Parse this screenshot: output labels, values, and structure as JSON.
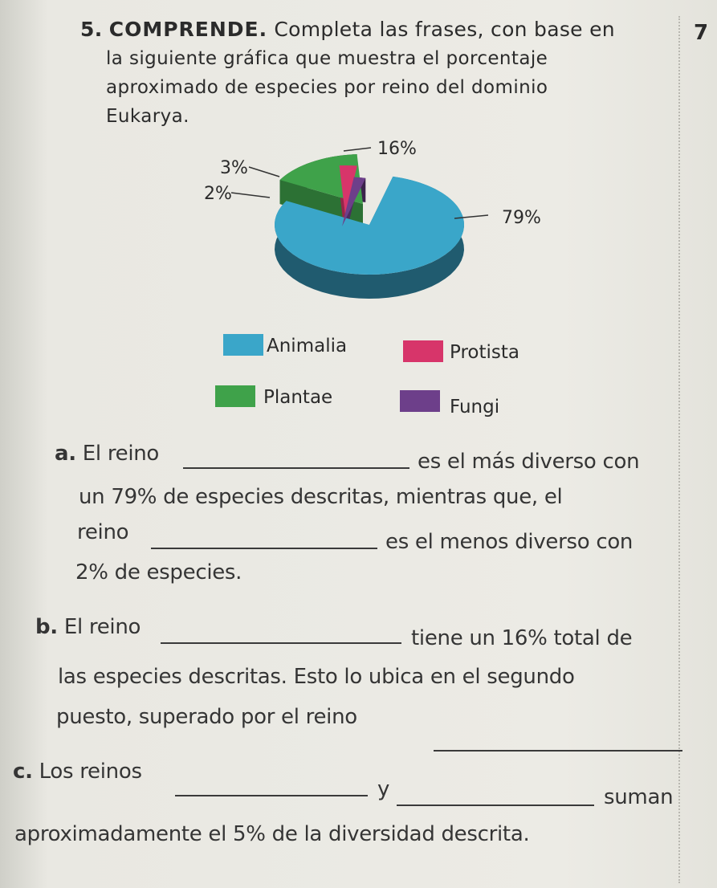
{
  "page_number": "7",
  "question": {
    "number": "5.",
    "keyword": "COMPRENDE.",
    "lines": [
      "Completa las frases, con base en",
      "la siguiente gráfica que muestra el porcentaje",
      "aproximado de especies por reino del dominio",
      "Eukarya."
    ]
  },
  "chart_data": {
    "type": "pie",
    "style": "3d-exploded",
    "slices": [
      {
        "name": "Animalia",
        "value": 79,
        "label": "79%",
        "color": "#3aa6c9"
      },
      {
        "name": "Plantae",
        "value": 16,
        "label": "16%",
        "color": "#3fa24a"
      },
      {
        "name": "Protista",
        "value": 3,
        "label": "3%",
        "color": "#d7356a"
      },
      {
        "name": "Fungi",
        "value": 2,
        "label": "2%",
        "color": "#6d3f8a"
      }
    ],
    "legend": {
      "placement": "bottom",
      "items": [
        {
          "name": "Animalia",
          "color": "#3aa6c9"
        },
        {
          "name": "Protista",
          "color": "#d7356a"
        },
        {
          "name": "Plantae",
          "color": "#3fa24a"
        },
        {
          "name": "Fungi",
          "color": "#6d3f8a"
        }
      ]
    }
  },
  "sentences": {
    "a": {
      "label": "a.",
      "l1_pre": "El reino",
      "l1_post": "es el más diverso con",
      "l2": "un 79% de especies descritas, mientras que, el",
      "l3_pre": "reino",
      "l3_post": "es el menos diverso con",
      "l4": "2% de especies."
    },
    "b": {
      "label": "b.",
      "l1_pre": "El reino",
      "l1_post": "tiene un 16% total de",
      "l2": "las especies descritas. Esto lo ubica en el segundo",
      "l3_pre": "puesto, superado por el reino"
    },
    "c": {
      "label": "c.",
      "l1_pre": "Los reinos",
      "l1_mid": "y",
      "l1_post": "suman",
      "l2": "aproximadamente el 5% de la diversidad descrita."
    }
  }
}
